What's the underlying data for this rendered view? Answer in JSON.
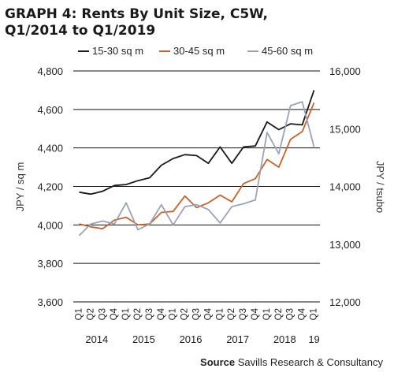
{
  "chart_data": {
    "type": "line",
    "title_line1": "GRAPH 4: Rents By Unit Size, C5W,",
    "title_line2": "Q1/2014 to Q1/2019",
    "ylabel": "JPY / sq m",
    "y2label": "JPY / tsubo",
    "ylim": [
      3600,
      4800
    ],
    "y2lim": [
      12000,
      16000
    ],
    "yticks": [
      "3,600",
      "3,800",
      "4,000",
      "4,200",
      "4,400",
      "4,600",
      "4,800"
    ],
    "y2ticks": [
      "12,000",
      "13,000",
      "14,000",
      "15,000",
      "16,000"
    ],
    "grid": true,
    "legend_position": "top",
    "x": [
      "Q1",
      "Q2",
      "Q3",
      "Q4",
      "Q1",
      "Q2",
      "Q3",
      "Q4",
      "Q1",
      "Q2",
      "Q3",
      "Q4",
      "Q1",
      "Q2",
      "Q3",
      "Q4",
      "Q1",
      "Q2",
      "Q3",
      "Q4",
      "Q1"
    ],
    "years": [
      {
        "label": "2014",
        "start": 0,
        "end": 3
      },
      {
        "label": "2015",
        "start": 4,
        "end": 7
      },
      {
        "label": "2016",
        "start": 8,
        "end": 11
      },
      {
        "label": "2017",
        "start": 12,
        "end": 15
      },
      {
        "label": "2018",
        "start": 16,
        "end": 19
      },
      {
        "label": "19",
        "start": 20,
        "end": 20
      }
    ],
    "series": [
      {
        "name": "15-30 sq m",
        "color": "#1a1a1a",
        "values": [
          4170,
          4160,
          4175,
          4205,
          4210,
          4230,
          4245,
          4310,
          4345,
          4365,
          4360,
          4320,
          4405,
          4320,
          4405,
          4410,
          4535,
          4495,
          4525,
          4520,
          4700
        ]
      },
      {
        "name": "30-45 sq m",
        "color": "#c8622a",
        "values": [
          4005,
          3990,
          3980,
          4025,
          4040,
          4000,
          4005,
          4065,
          4070,
          4150,
          4090,
          4115,
          4155,
          4120,
          4215,
          4240,
          4340,
          4300,
          4445,
          4485,
          4635
        ]
      },
      {
        "name": "45-60 sq m",
        "color": "#9ba3b5",
        "values": [
          3945,
          4005,
          4020,
          4005,
          4115,
          3975,
          4005,
          4105,
          4000,
          4095,
          4105,
          4080,
          4010,
          4095,
          4110,
          4130,
          4480,
          4370,
          4620,
          4640,
          4405
        ]
      }
    ],
    "source_label": "Source",
    "source_text": "Savills Research & Consultancy"
  }
}
